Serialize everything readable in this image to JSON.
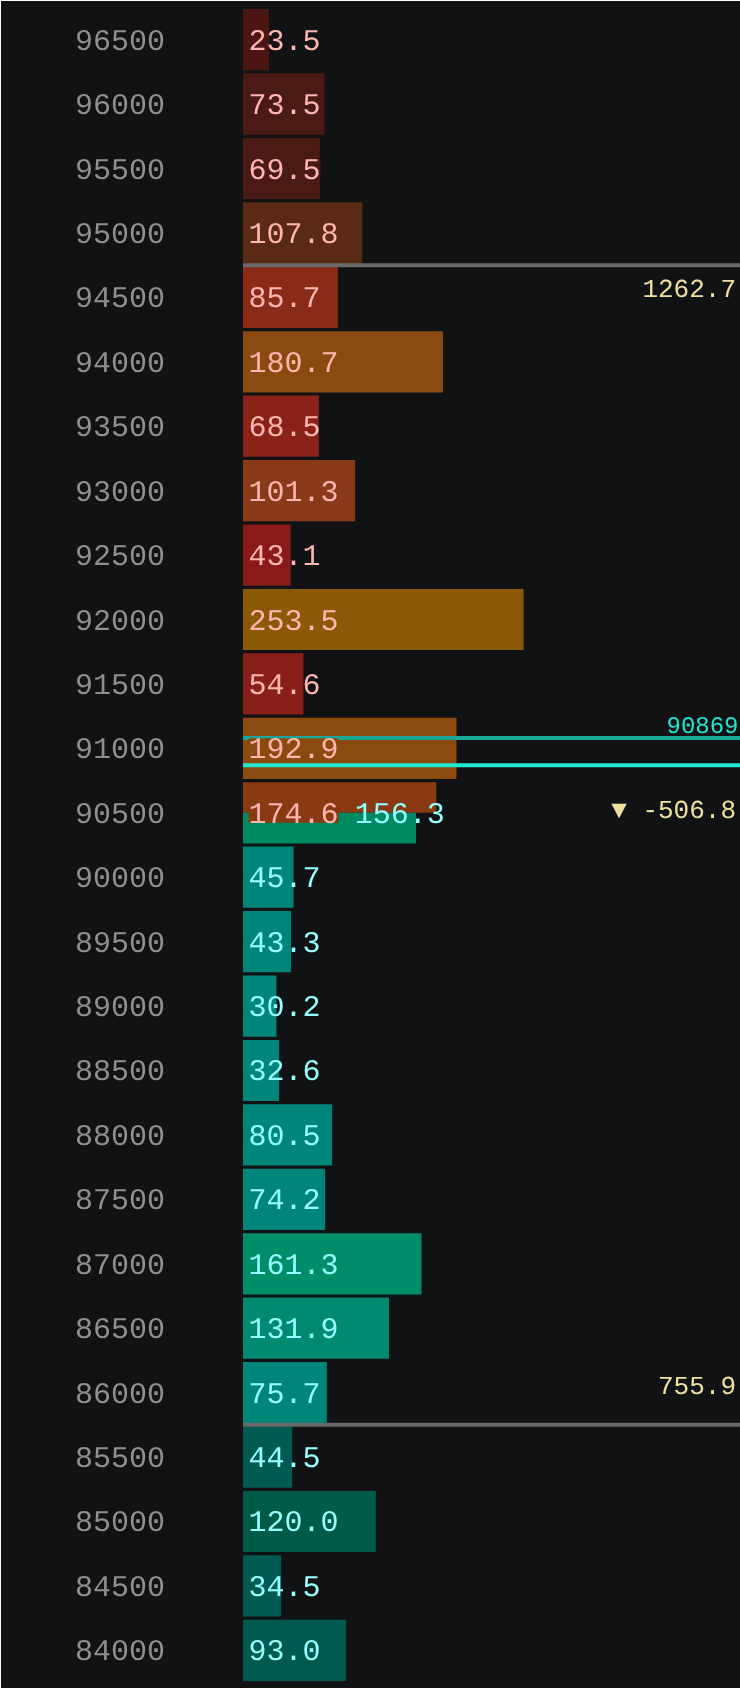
{
  "chart_data": {
    "type": "bar",
    "orientation": "horizontal",
    "x": [
      96500,
      96000,
      95500,
      95000,
      94500,
      94000,
      93500,
      93000,
      92500,
      92000,
      91500,
      91000,
      90500,
      90000,
      89500,
      89000,
      88500,
      88000,
      87500,
      87000,
      86500,
      86000,
      85500,
      85000,
      84500,
      84000
    ],
    "ylim": [
      83700,
      96800
    ],
    "yticks": [
      96500,
      96000,
      95500,
      95000,
      94500,
      94000,
      93500,
      93000,
      92500,
      92000,
      91500,
      91000,
      90500,
      90000,
      89500,
      89000,
      88500,
      88000,
      87500,
      87000,
      86500,
      86000,
      85500,
      85000,
      84500,
      84000
    ],
    "xlim": [
      0,
      450
    ],
    "tick_labels": "y",
    "grid": false,
    "series": [
      {
        "color": "#8a1f1a",
        "values": [
          23.5,
          73.5,
          69.5,
          107.8,
          85.7,
          180.7,
          68.5,
          101.3,
          43.1,
          253.5,
          54.6,
          192.9,
          174.6,
          null,
          null,
          null,
          null,
          null,
          null,
          null,
          null,
          null,
          null,
          null,
          null,
          null
        ],
        "colors": [
          "#4a1512",
          "#4a1a14",
          "#4a1a14",
          "#5a2a14",
          "#8a2a18",
          "#8a4a10",
          "#8a2218",
          "#8a3a18",
          "#8a1a18",
          "#8a5a08",
          "#8a1e18",
          "#8a4a10",
          "#8a3a12",
          null,
          null,
          null,
          null,
          null,
          null,
          null,
          null,
          null,
          null,
          null,
          null,
          null
        ],
        "value_labels": [
          "23.5",
          "73.5",
          "69.5",
          "107.8",
          "85.7",
          "180.7",
          "68.5",
          "101.3",
          "43.1",
          "253.5",
          "54.6",
          "192.9",
          "174.6",
          null,
          null,
          null,
          null,
          null,
          null,
          null,
          null,
          null,
          null,
          null,
          null,
          null
        ]
      },
      {
        "color": "#00897b",
        "values": [
          null,
          null,
          null,
          null,
          null,
          null,
          null,
          null,
          null,
          null,
          null,
          null,
          156.3,
          45.7,
          43.3,
          30.2,
          32.6,
          80.5,
          74.2,
          161.3,
          131.9,
          75.7,
          44.5,
          120.0,
          34.5,
          93.0
        ],
        "colors": [
          null,
          null,
          null,
          null,
          null,
          null,
          null,
          null,
          null,
          null,
          null,
          null,
          "#008a62",
          "#00857a",
          "#00857a",
          "#00857a",
          "#00857a",
          "#00857a",
          "#00857a",
          "#008d6a",
          "#008a72",
          "#00857a",
          "#005a52",
          "#005a48",
          "#005a52",
          "#005a50"
        ],
        "value_labels": [
          null,
          null,
          null,
          null,
          null,
          null,
          null,
          null,
          null,
          null,
          null,
          null,
          "156.3",
          "45.7",
          "43.3",
          "30.2",
          "32.6",
          "80.5",
          "74.2",
          "161.3",
          "131.9",
          "75.7",
          "44.5",
          "120.0",
          "34.5",
          "93.0"
        ]
      }
    ],
    "ref_lines": [
      {
        "axis": "y",
        "value": 94750,
        "color": "#6a6a6a"
      },
      {
        "axis": "y",
        "value": 85750,
        "color": "#6a6a6a"
      },
      {
        "axis": "y",
        "value": 91080,
        "color": "#1aa89a"
      },
      {
        "axis": "y",
        "value": 90869,
        "label": "90869",
        "color": "#1ee8d0"
      }
    ],
    "annotations": [
      "1262.7",
      "▼ -506.8",
      "755.9"
    ]
  }
}
